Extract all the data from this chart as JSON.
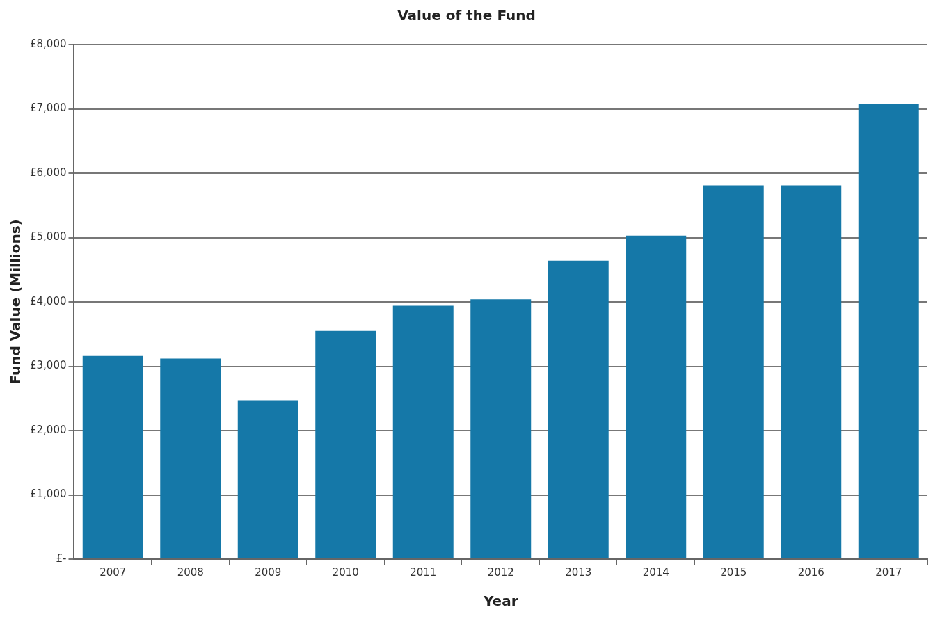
{
  "chart_data": {
    "type": "bar",
    "title": "Value of the Fund",
    "xlabel": "Year",
    "ylabel": "Fund Value (Millions)",
    "categories": [
      "2007",
      "2008",
      "2009",
      "2010",
      "2011",
      "2012",
      "2013",
      "2014",
      "2015",
      "2016",
      "2017"
    ],
    "values": [
      3160,
      3120,
      2470,
      3550,
      3940,
      4040,
      4640,
      5030,
      5810,
      5810,
      7070
    ],
    "color": "#1578a8",
    "ylim": [
      0,
      8000
    ],
    "yticks": [
      {
        "value": 0,
        "label": "£-"
      },
      {
        "value": 1000,
        "label": "£1,000"
      },
      {
        "value": 2000,
        "label": "£2,000"
      },
      {
        "value": 3000,
        "label": "£3,000"
      },
      {
        "value": 4000,
        "label": "£4,000"
      },
      {
        "value": 5000,
        "label": "£5,000"
      },
      {
        "value": 6000,
        "label": "£6,000"
      },
      {
        "value": 7000,
        "label": "£7,000"
      },
      {
        "value": 8000,
        "label": "£8,000"
      }
    ],
    "grid": "y",
    "legend": false
  }
}
